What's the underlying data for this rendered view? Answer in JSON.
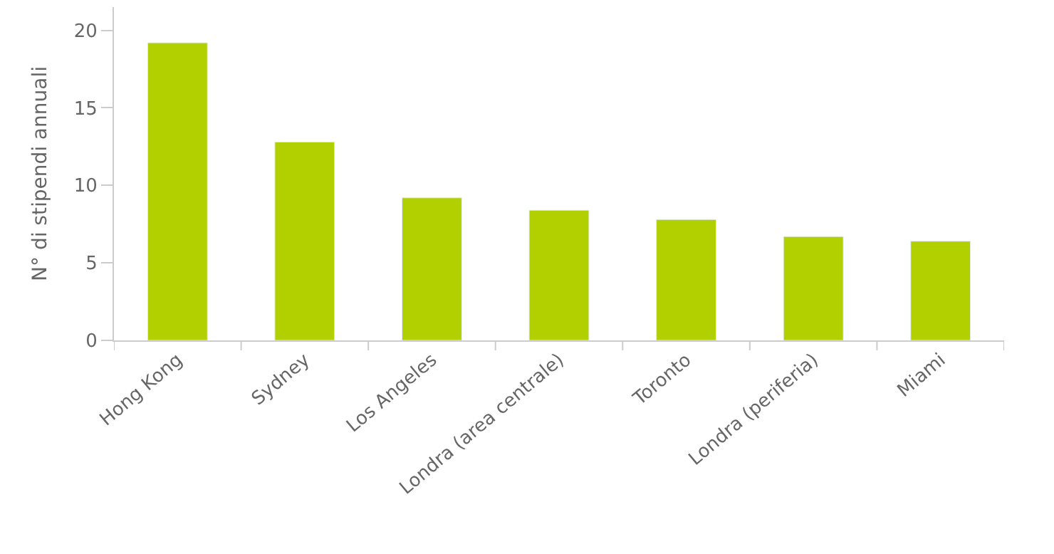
{
  "chart_data": {
    "type": "bar",
    "ylabel": "N° di stipendi annuali",
    "categories": [
      "Hong Kong",
      "Sydney",
      "Los Angeles",
      "Londra (area centrale)",
      "Toronto",
      "Londra (periferia)",
      "Miami"
    ],
    "series": [
      {
        "color": "#b2d000",
        "values": [
          19.2,
          12.8,
          9.2,
          8.4,
          7.8,
          6.7,
          6.4
        ]
      }
    ],
    "ylim": [
      0,
      21.5
    ],
    "yticks": [
      0,
      5,
      10,
      15,
      20
    ]
  }
}
